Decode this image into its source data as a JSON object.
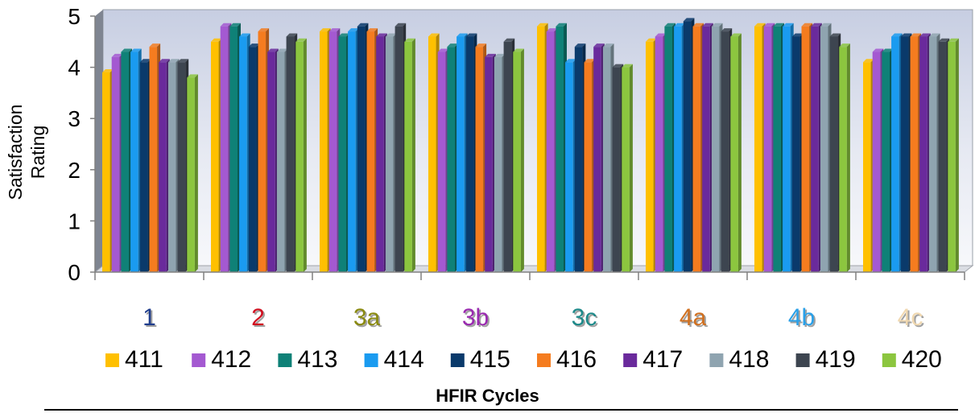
{
  "chart_data": {
    "type": "bar",
    "title": "",
    "xlabel": "HFIR Cycles",
    "ylabel": "Satisfaction Rating",
    "ylim": [
      0,
      5
    ],
    "yticks": [
      "0",
      "1",
      "2",
      "3",
      "4",
      "5"
    ],
    "grid": false,
    "legend_position": "bottom",
    "categories": [
      "1",
      "2",
      "3a",
      "3b",
      "3c",
      "4a",
      "4b",
      "4c"
    ],
    "category_label_colors": [
      "#1F3D8C",
      "#D01020",
      "#8A8A10",
      "#9A2AB0",
      "#1E8A8A",
      "#D07020",
      "#2AA0E8",
      "#F0D8B0"
    ],
    "series": [
      {
        "name": "411",
        "color": "#FFC000",
        "values": [
          3.9,
          4.5,
          4.7,
          4.6,
          4.8,
          4.5,
          4.8,
          4.1
        ]
      },
      {
        "name": "412",
        "color": "#A459D1",
        "values": [
          4.2,
          4.8,
          4.7,
          4.3,
          4.7,
          4.6,
          4.8,
          4.3
        ]
      },
      {
        "name": "413",
        "color": "#0F8177",
        "values": [
          4.3,
          4.8,
          4.6,
          4.4,
          4.8,
          4.8,
          4.8,
          4.3
        ]
      },
      {
        "name": "414",
        "color": "#1A9BF0",
        "values": [
          4.3,
          4.6,
          4.7,
          4.6,
          4.1,
          4.8,
          4.8,
          4.6
        ]
      },
      {
        "name": "415",
        "color": "#0A3A6B",
        "values": [
          4.1,
          4.4,
          4.8,
          4.6,
          4.4,
          4.9,
          4.6,
          4.6
        ]
      },
      {
        "name": "416",
        "color": "#F57C1F",
        "values": [
          4.4,
          4.7,
          4.7,
          4.4,
          4.1,
          4.8,
          4.8,
          4.6
        ]
      },
      {
        "name": "417",
        "color": "#6A2A9C",
        "values": [
          4.1,
          4.3,
          4.6,
          4.2,
          4.4,
          4.8,
          4.8,
          4.6
        ]
      },
      {
        "name": "418",
        "color": "#8FA4B0",
        "values": [
          4.1,
          4.3,
          4.6,
          4.2,
          4.4,
          4.8,
          4.8,
          4.6
        ]
      },
      {
        "name": "419",
        "color": "#3D4550",
        "values": [
          4.1,
          4.6,
          4.8,
          4.5,
          4.0,
          4.7,
          4.6,
          4.5
        ]
      },
      {
        "name": "420",
        "color": "#8CC63F",
        "values": [
          3.8,
          4.5,
          4.5,
          4.3,
          4.0,
          4.6,
          4.4,
          4.5
        ]
      }
    ]
  }
}
